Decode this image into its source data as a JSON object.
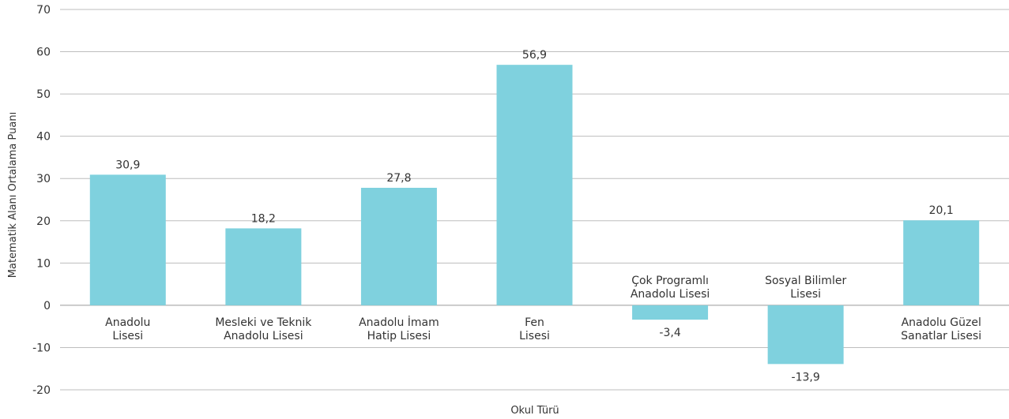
{
  "chart_data": {
    "type": "bar",
    "title": "",
    "xlabel": "Okul Türü",
    "ylabel": "Matematik  Alanı Ortalama Puanı",
    "ylim": [
      -20,
      70
    ],
    "yticks": [
      "70",
      "60",
      "50",
      "40",
      "30",
      "20",
      "10",
      "0",
      "-10",
      "-20"
    ],
    "grid": true,
    "bar_color": "#7fd1de",
    "categories": [
      [
        "Anadolu",
        "Lisesi"
      ],
      [
        "Mesleki ve Teknik",
        "Anadolu Lisesi"
      ],
      [
        "Anadolu İmam",
        "Hatip Lisesi"
      ],
      [
        "Fen",
        "Lisesi"
      ],
      [
        "Çok Programlı",
        "Anadolu Lisesi"
      ],
      [
        "Sosyal Bilimler",
        "Lisesi"
      ],
      [
        "Anadolu Güzel",
        "Sanatlar Lisesi"
      ]
    ],
    "values": [
      30.9,
      18.2,
      27.8,
      56.9,
      -3.4,
      -13.9,
      20.1
    ],
    "value_labels": [
      "30,9",
      "18,2",
      "27,8",
      "56,9",
      "-3,4",
      "-13,9",
      "20,1"
    ]
  }
}
